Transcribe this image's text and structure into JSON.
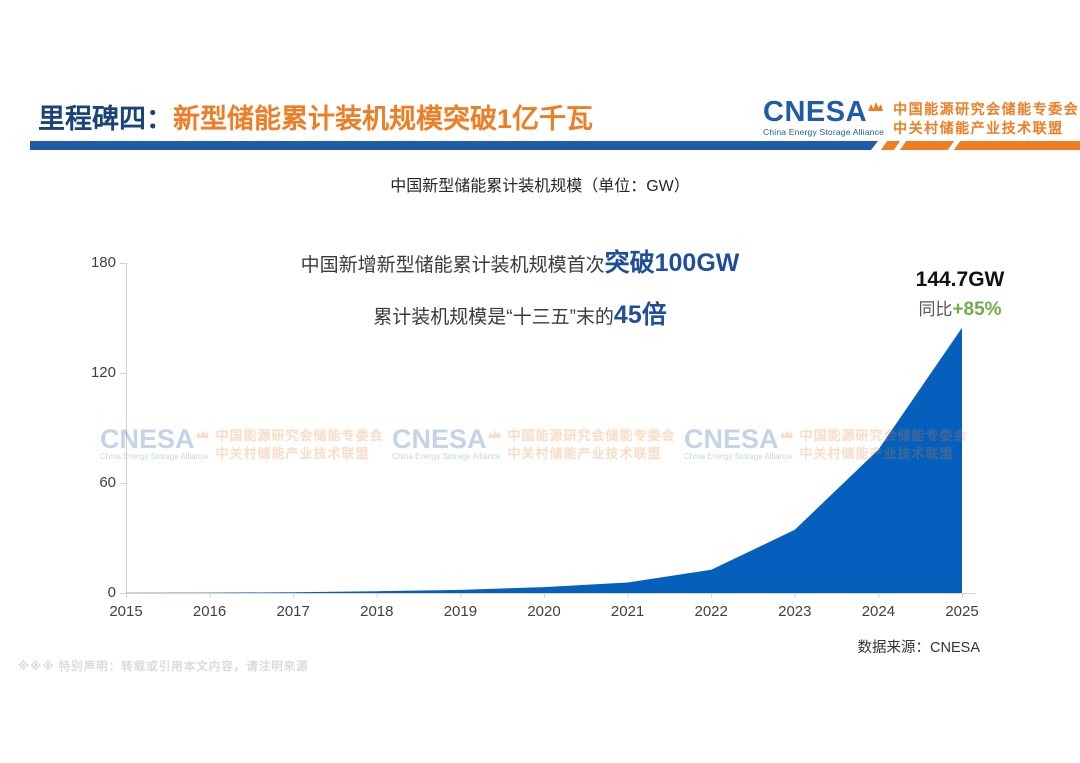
{
  "colors": {
    "navy": "#1A4477",
    "orange": "#EE7D23",
    "bar_blue": "#1E5BA9",
    "area_blue": "#0560BD",
    "emphasis_blue": "#1F4E9B",
    "growth_green": "#70AD47"
  },
  "header": {
    "title_prefix": "里程碑四：",
    "title_main": "新型储能累计装机规模突破1亿千瓦",
    "logo": {
      "wordmark": "CNESA",
      "subtitle": "China Energy Storage Alliance",
      "org_line1": "中国能源研究会储能专委会",
      "org_line2": "中关村储能产业技术联盟"
    }
  },
  "footer": {
    "disclaimer": "※※※ 特别声明：转载或引用本文内容，请注明来源"
  },
  "chart_data": {
    "type": "area",
    "title": "中国新型储能累计装机规模（单位：GW）",
    "x": [
      2015,
      2016,
      2017,
      2018,
      2019,
      2020,
      2021,
      2022,
      2023,
      2024,
      2025
    ],
    "values": [
      0.1,
      0.2,
      0.4,
      1.0,
      1.7,
      3.2,
      5.7,
      12.7,
      34.5,
      78.2,
      144.7
    ],
    "ylabel": "GW",
    "ylim": [
      0,
      180
    ],
    "yticks": [
      0,
      60,
      120,
      180
    ],
    "grid": false,
    "legend": false,
    "fill_color": "#0560BD",
    "annotations": {
      "headline_normal": "中国新增新型储能累计装机规模首次",
      "headline_emph": "突破100GW",
      "subline_normal": "累计装机规模是“十三五”末的",
      "subline_emph": "45倍",
      "peak_value": "144.7GW",
      "yoy_prefix": "同比",
      "yoy_value": "+85%"
    },
    "source": "数据来源：CNESA"
  }
}
